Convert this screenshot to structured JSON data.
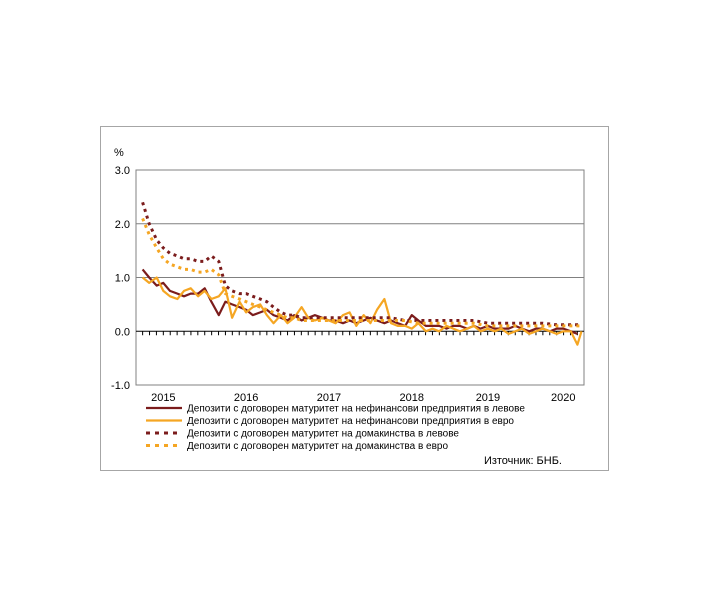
{
  "chart_data": {
    "type": "line",
    "ylabel": "%",
    "ylim": [
      -1.0,
      3.0
    ],
    "yticks": [
      "3.0",
      "2.0",
      "1.0",
      "0.0",
      "-1.0"
    ],
    "x_range": [
      2014.92,
      2020.33
    ],
    "xticks": [
      {
        "label": "2015",
        "x": 2015.25
      },
      {
        "label": "2016",
        "x": 2016.25
      },
      {
        "label": "2017",
        "x": 2017.25
      },
      {
        "label": "2018",
        "x": 2018.25
      },
      {
        "label": "2019",
        "x": 2019.17
      },
      {
        "label": "2020",
        "x": 2020.08
      }
    ],
    "grid": true,
    "legend_position": "bottom",
    "source": "Източник: БНБ.",
    "series": [
      {
        "name": "Депозити с договорен матуритет на нефинансови предприятия в левове",
        "color": "#7b1c1c",
        "dash": "solid",
        "points": [
          [
            2015.0,
            1.15
          ],
          [
            2015.08,
            1.0
          ],
          [
            2015.17,
            0.85
          ],
          [
            2015.25,
            0.9
          ],
          [
            2015.33,
            0.75
          ],
          [
            2015.42,
            0.7
          ],
          [
            2015.5,
            0.65
          ],
          [
            2015.58,
            0.7
          ],
          [
            2015.67,
            0.7
          ],
          [
            2015.75,
            0.8
          ],
          [
            2015.83,
            0.55
          ],
          [
            2015.92,
            0.3
          ],
          [
            2016.0,
            0.55
          ],
          [
            2016.08,
            0.5
          ],
          [
            2016.17,
            0.45
          ],
          [
            2016.25,
            0.4
          ],
          [
            2016.33,
            0.3
          ],
          [
            2016.42,
            0.35
          ],
          [
            2016.5,
            0.4
          ],
          [
            2016.58,
            0.3
          ],
          [
            2016.67,
            0.25
          ],
          [
            2016.75,
            0.2
          ],
          [
            2016.83,
            0.3
          ],
          [
            2016.92,
            0.2
          ],
          [
            2017.0,
            0.25
          ],
          [
            2017.08,
            0.3
          ],
          [
            2017.17,
            0.25
          ],
          [
            2017.25,
            0.2
          ],
          [
            2017.33,
            0.2
          ],
          [
            2017.42,
            0.15
          ],
          [
            2017.5,
            0.2
          ],
          [
            2017.58,
            0.15
          ],
          [
            2017.67,
            0.2
          ],
          [
            2017.75,
            0.25
          ],
          [
            2017.83,
            0.2
          ],
          [
            2017.92,
            0.15
          ],
          [
            2018.0,
            0.2
          ],
          [
            2018.08,
            0.15
          ],
          [
            2018.17,
            0.1
          ],
          [
            2018.25,
            0.3
          ],
          [
            2018.33,
            0.2
          ],
          [
            2018.42,
            0.1
          ],
          [
            2018.5,
            0.1
          ],
          [
            2018.58,
            0.1
          ],
          [
            2018.67,
            0.05
          ],
          [
            2018.75,
            0.1
          ],
          [
            2018.83,
            0.1
          ],
          [
            2018.92,
            0.05
          ],
          [
            2019.0,
            0.1
          ],
          [
            2019.08,
            0.05
          ],
          [
            2019.17,
            0.1
          ],
          [
            2019.25,
            0.05
          ],
          [
            2019.33,
            0.05
          ],
          [
            2019.42,
            0.05
          ],
          [
            2019.5,
            0.1
          ],
          [
            2019.58,
            0.05
          ],
          [
            2019.67,
            0.0
          ],
          [
            2019.75,
            0.05
          ],
          [
            2019.83,
            0.05
          ],
          [
            2019.92,
            0.0
          ],
          [
            2020.0,
            0.05
          ],
          [
            2020.08,
            0.05
          ],
          [
            2020.17,
            0.0
          ],
          [
            2020.25,
            -0.05
          ]
        ]
      },
      {
        "name": "Депозити с договорен матуритет на нефинансови предприятия в евро",
        "color": "#f5a623",
        "dash": "solid",
        "points": [
          [
            2015.0,
            1.0
          ],
          [
            2015.08,
            0.9
          ],
          [
            2015.17,
            1.0
          ],
          [
            2015.25,
            0.75
          ],
          [
            2015.33,
            0.65
          ],
          [
            2015.42,
            0.6
          ],
          [
            2015.5,
            0.75
          ],
          [
            2015.58,
            0.8
          ],
          [
            2015.67,
            0.65
          ],
          [
            2015.75,
            0.75
          ],
          [
            2015.83,
            0.6
          ],
          [
            2015.92,
            0.65
          ],
          [
            2016.0,
            0.8
          ],
          [
            2016.08,
            0.25
          ],
          [
            2016.17,
            0.55
          ],
          [
            2016.25,
            0.35
          ],
          [
            2016.33,
            0.45
          ],
          [
            2016.42,
            0.5
          ],
          [
            2016.5,
            0.3
          ],
          [
            2016.58,
            0.15
          ],
          [
            2016.67,
            0.3
          ],
          [
            2016.75,
            0.15
          ],
          [
            2016.83,
            0.25
          ],
          [
            2016.92,
            0.45
          ],
          [
            2017.0,
            0.25
          ],
          [
            2017.08,
            0.2
          ],
          [
            2017.17,
            0.25
          ],
          [
            2017.25,
            0.2
          ],
          [
            2017.33,
            0.15
          ],
          [
            2017.42,
            0.3
          ],
          [
            2017.5,
            0.35
          ],
          [
            2017.58,
            0.1
          ],
          [
            2017.67,
            0.3
          ],
          [
            2017.75,
            0.15
          ],
          [
            2017.83,
            0.4
          ],
          [
            2017.92,
            0.6
          ],
          [
            2018.0,
            0.15
          ],
          [
            2018.08,
            0.1
          ],
          [
            2018.17,
            0.1
          ],
          [
            2018.25,
            0.05
          ],
          [
            2018.33,
            0.15
          ],
          [
            2018.42,
            0.0
          ],
          [
            2018.5,
            0.05
          ],
          [
            2018.58,
            0.0
          ],
          [
            2018.67,
            0.1
          ],
          [
            2018.75,
            0.05
          ],
          [
            2018.83,
            0.0
          ],
          [
            2018.92,
            0.05
          ],
          [
            2019.0,
            0.1
          ],
          [
            2019.08,
            0.0
          ],
          [
            2019.17,
            0.05
          ],
          [
            2019.25,
            0.0
          ],
          [
            2019.33,
            0.05
          ],
          [
            2019.42,
            -0.05
          ],
          [
            2019.5,
            0.0
          ],
          [
            2019.58,
            0.05
          ],
          [
            2019.67,
            -0.05
          ],
          [
            2019.75,
            0.0
          ],
          [
            2019.83,
            0.05
          ],
          [
            2019.92,
            0.0
          ],
          [
            2020.0,
            -0.05
          ],
          [
            2020.08,
            0.0
          ],
          [
            2020.17,
            0.0
          ],
          [
            2020.25,
            -0.25
          ],
          [
            2020.3,
            0.0
          ]
        ]
      },
      {
        "name": "Депозити с договорен матуритет на домакинства в левове",
        "color": "#7b1c1c",
        "dash": "dotted",
        "points": [
          [
            2015.0,
            2.4
          ],
          [
            2015.08,
            2.0
          ],
          [
            2015.17,
            1.7
          ],
          [
            2015.25,
            1.55
          ],
          [
            2015.33,
            1.45
          ],
          [
            2015.42,
            1.4
          ],
          [
            2015.5,
            1.35
          ],
          [
            2015.58,
            1.35
          ],
          [
            2015.67,
            1.3
          ],
          [
            2015.75,
            1.3
          ],
          [
            2015.83,
            1.4
          ],
          [
            2015.92,
            1.3
          ],
          [
            2016.0,
            0.85
          ],
          [
            2016.08,
            0.75
          ],
          [
            2016.17,
            0.7
          ],
          [
            2016.25,
            0.7
          ],
          [
            2016.33,
            0.65
          ],
          [
            2016.42,
            0.6
          ],
          [
            2016.5,
            0.55
          ],
          [
            2016.58,
            0.45
          ],
          [
            2016.67,
            0.35
          ],
          [
            2016.75,
            0.3
          ],
          [
            2016.83,
            0.3
          ],
          [
            2016.92,
            0.25
          ],
          [
            2017.0,
            0.25
          ],
          [
            2017.17,
            0.25
          ],
          [
            2017.33,
            0.25
          ],
          [
            2017.5,
            0.25
          ],
          [
            2017.67,
            0.25
          ],
          [
            2017.83,
            0.25
          ],
          [
            2018.0,
            0.25
          ],
          [
            2018.17,
            0.2
          ],
          [
            2018.33,
            0.2
          ],
          [
            2018.5,
            0.2
          ],
          [
            2018.67,
            0.2
          ],
          [
            2018.83,
            0.2
          ],
          [
            2019.0,
            0.2
          ],
          [
            2019.17,
            0.15
          ],
          [
            2019.33,
            0.15
          ],
          [
            2019.5,
            0.15
          ],
          [
            2019.67,
            0.15
          ],
          [
            2019.83,
            0.15
          ],
          [
            2020.0,
            0.12
          ],
          [
            2020.17,
            0.12
          ],
          [
            2020.3,
            0.12
          ]
        ]
      },
      {
        "name": "Депозити с договорен матуритет на домакинства в евро",
        "color": "#f5a623",
        "dash": "dotted",
        "points": [
          [
            2015.0,
            2.1
          ],
          [
            2015.08,
            1.8
          ],
          [
            2015.17,
            1.55
          ],
          [
            2015.25,
            1.35
          ],
          [
            2015.33,
            1.25
          ],
          [
            2015.42,
            1.2
          ],
          [
            2015.5,
            1.15
          ],
          [
            2015.58,
            1.15
          ],
          [
            2015.67,
            1.1
          ],
          [
            2015.75,
            1.1
          ],
          [
            2015.83,
            1.15
          ],
          [
            2015.92,
            1.05
          ],
          [
            2016.0,
            0.7
          ],
          [
            2016.08,
            0.65
          ],
          [
            2016.17,
            0.6
          ],
          [
            2016.25,
            0.55
          ],
          [
            2016.33,
            0.5
          ],
          [
            2016.42,
            0.45
          ],
          [
            2016.5,
            0.4
          ],
          [
            2016.58,
            0.35
          ],
          [
            2016.67,
            0.3
          ],
          [
            2016.75,
            0.25
          ],
          [
            2016.83,
            0.25
          ],
          [
            2016.92,
            0.2
          ],
          [
            2017.0,
            0.2
          ],
          [
            2017.17,
            0.2
          ],
          [
            2017.33,
            0.2
          ],
          [
            2017.5,
            0.2
          ],
          [
            2017.67,
            0.2
          ],
          [
            2017.83,
            0.2
          ],
          [
            2018.0,
            0.2
          ],
          [
            2018.17,
            0.2
          ],
          [
            2018.33,
            0.15
          ],
          [
            2018.5,
            0.15
          ],
          [
            2018.67,
            0.15
          ],
          [
            2018.83,
            0.15
          ],
          [
            2019.0,
            0.15
          ],
          [
            2019.17,
            0.1
          ],
          [
            2019.33,
            0.1
          ],
          [
            2019.5,
            0.1
          ],
          [
            2019.67,
            0.1
          ],
          [
            2019.83,
            0.1
          ],
          [
            2020.0,
            0.1
          ],
          [
            2020.17,
            0.1
          ],
          [
            2020.3,
            0.1
          ]
        ]
      }
    ]
  }
}
